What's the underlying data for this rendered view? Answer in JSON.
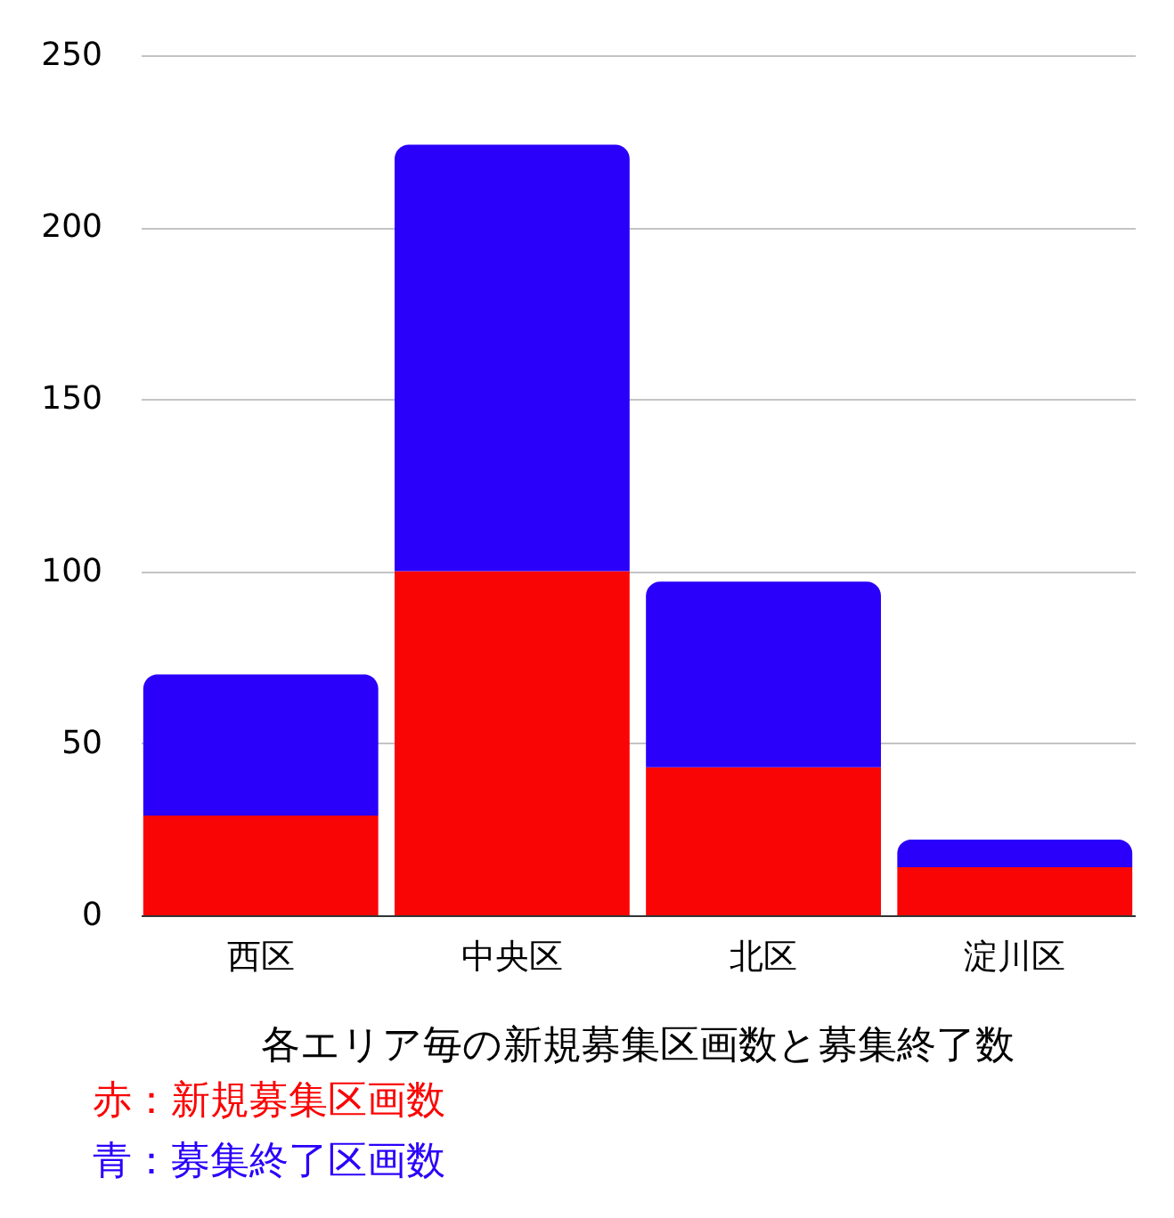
{
  "chart_data": {
    "type": "bar",
    "stacked": true,
    "title": "各エリア毎の新規募集区画数と募集終了数",
    "categories": [
      "西区",
      "中央区",
      "北区",
      "淀川区"
    ],
    "series": [
      {
        "name": "赤：新規募集区画数",
        "color": "#fa0505",
        "values": [
          29,
          100,
          43,
          14
        ]
      },
      {
        "name": "青：募集終了区画数",
        "color": "#2a00fa",
        "values": [
          41,
          124,
          54,
          8
        ]
      }
    ],
    "ylim": [
      0,
      250
    ],
    "yticks": [
      0,
      50,
      100,
      150,
      200,
      250
    ],
    "grid": "y"
  }
}
